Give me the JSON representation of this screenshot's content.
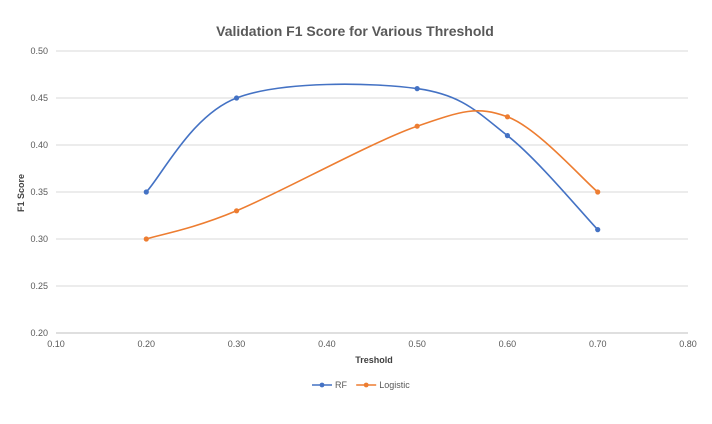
{
  "chart_data": {
    "type": "line",
    "title": "Validation F1 Score for Various Threshold",
    "xlabel": "Treshold",
    "ylabel": "F1 Score",
    "xlim": [
      0.1,
      0.8
    ],
    "ylim": [
      0.2,
      0.5
    ],
    "xticks": [
      "0.10",
      "0.20",
      "0.30",
      "0.40",
      "0.50",
      "0.60",
      "0.70",
      "0.80"
    ],
    "yticks": [
      "0.20",
      "0.25",
      "0.30",
      "0.35",
      "0.40",
      "0.45",
      "0.50"
    ],
    "grid": true,
    "smooth": true,
    "legend_position": "bottom",
    "series": [
      {
        "name": "RF",
        "color": "#4472C4",
        "x": [
          0.2,
          0.3,
          0.5,
          0.6,
          0.7
        ],
        "y": [
          0.35,
          0.45,
          0.46,
          0.41,
          0.31
        ]
      },
      {
        "name": "Logistic",
        "color": "#ED7D31",
        "x": [
          0.2,
          0.3,
          0.5,
          0.6,
          0.7
        ],
        "y": [
          0.3,
          0.33,
          0.42,
          0.43,
          0.35
        ]
      }
    ]
  }
}
